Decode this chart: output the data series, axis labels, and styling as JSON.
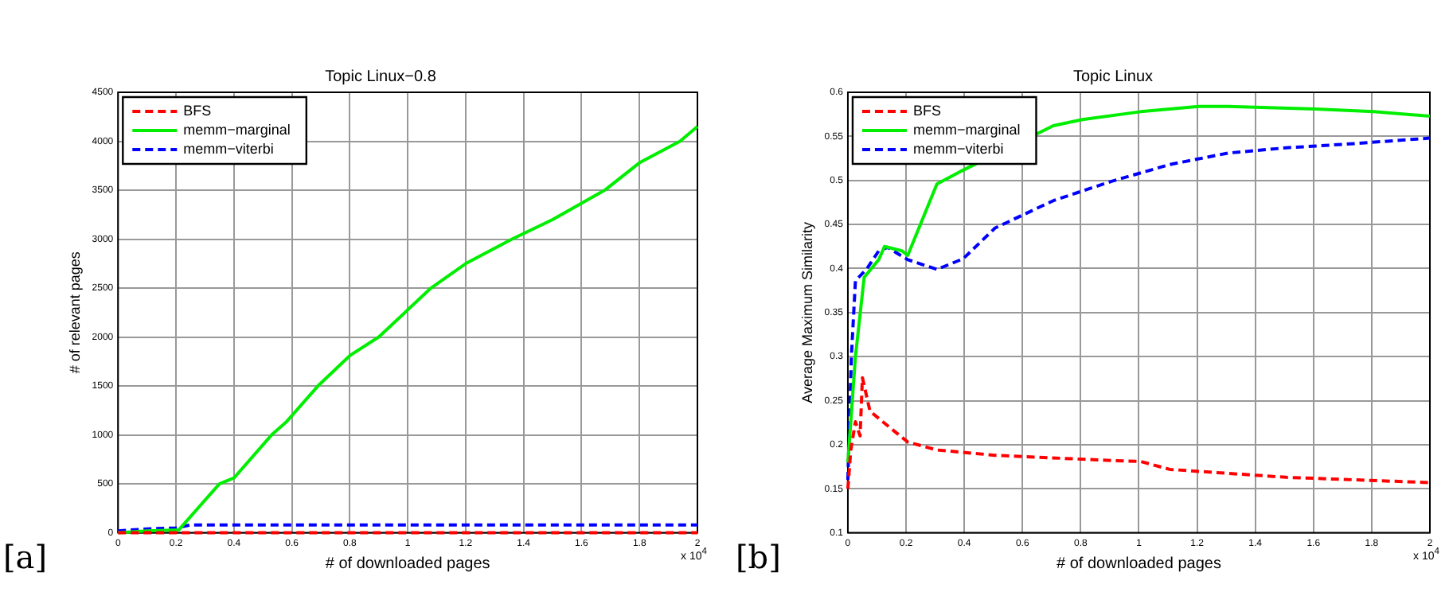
{
  "chart_data": [
    {
      "type": "line",
      "title": "Topic Linux−0.8",
      "xlabel": "# of downloaded pages",
      "ylabel": "# of relevant pages",
      "xlim": [
        0,
        2
      ],
      "xticks": [
        0,
        0.2,
        0.4,
        0.6,
        0.8,
        1,
        1.2,
        1.4,
        1.6,
        1.8,
        2
      ],
      "ylim": [
        0,
        4500
      ],
      "yticks": [
        0,
        500,
        1000,
        1500,
        2000,
        2500,
        3000,
        3500,
        4000,
        4500
      ],
      "grid": true,
      "legend": "top left",
      "annotations": [
        "[a]",
        "x 10$^{4}$"
      ],
      "series": [
        {
          "name": "BFS",
          "color": "#ff0000",
          "line_style": "dashed",
          "x": [
            0,
            0.2,
            0.5,
            1,
            1.5,
            2
          ],
          "values": [
            0,
            0,
            0,
            0,
            0,
            0
          ]
        },
        {
          "name": "memm−marginal",
          "color": "#00ee00",
          "line_style": "solid",
          "x": [
            0,
            0.1,
            0.21,
            0.32,
            0.35,
            0.4,
            0.53,
            0.58,
            0.69,
            0.8,
            0.9,
            1.08,
            1.2,
            1.36,
            1.5,
            1.68,
            1.8,
            1.94,
            2
          ],
          "values": [
            0,
            20,
            30,
            400,
            500,
            560,
            1000,
            1130,
            1500,
            1810,
            2000,
            2500,
            2750,
            3000,
            3200,
            3500,
            3780,
            4000,
            4150
          ]
        },
        {
          "name": "memm−viterbi",
          "color": "#0000ff",
          "line_style": "dashed",
          "x": [
            0,
            0.1,
            0.2,
            0.25,
            0.5,
            1,
            1.5,
            2
          ],
          "values": [
            20,
            40,
            50,
            80,
            80,
            80,
            80,
            80
          ]
        }
      ]
    },
    {
      "type": "line",
      "title": "Topic Linux",
      "xlabel": "# of downloaded pages",
      "ylabel": "Average Maximum Similarity",
      "xlim": [
        0,
        2
      ],
      "xticks": [
        0,
        0.2,
        0.4,
        0.6,
        0.8,
        1,
        1.2,
        1.4,
        1.6,
        1.8,
        2
      ],
      "ylim": [
        0.1,
        0.6
      ],
      "yticks": [
        0.1,
        0.15,
        0.2,
        0.25,
        0.3,
        0.35,
        0.4,
        0.45,
        0.5,
        0.55,
        0.6
      ],
      "grid": true,
      "legend": "top left",
      "annotations": [
        "[b]",
        "x 10$^{4}$"
      ],
      "series": [
        {
          "name": "BFS",
          "color": "#ff0000",
          "line_style": "dashed",
          "x": [
            0,
            0.01,
            0.026,
            0.042,
            0.05,
            0.076,
            0.146,
            0.206,
            0.306,
            0.506,
            0.906,
            1.006,
            1.106,
            1.506,
            2
          ],
          "values": [
            0.15,
            0.194,
            0.226,
            0.21,
            0.276,
            0.238,
            0.219,
            0.203,
            0.194,
            0.188,
            0.182,
            0.181,
            0.172,
            0.163,
            0.157
          ]
        },
        {
          "name": "memm−marginal",
          "color": "#00ee00",
          "line_style": "solid",
          "x": [
            0,
            0.026,
            0.056,
            0.106,
            0.126,
            0.186,
            0.206,
            0.306,
            0.386,
            0.706,
            0.806,
            1.006,
            1.206,
            1.306,
            1.606,
            1.806,
            2
          ],
          "values": [
            0.18,
            0.3,
            0.39,
            0.41,
            0.425,
            0.42,
            0.415,
            0.496,
            0.51,
            0.562,
            0.569,
            0.578,
            0.584,
            0.584,
            0.581,
            0.578,
            0.573
          ]
        },
        {
          "name": "memm−viterbi",
          "color": "#0000ff",
          "line_style": "dashed",
          "x": [
            0,
            0.012,
            0.026,
            0.066,
            0.106,
            0.136,
            0.206,
            0.306,
            0.396,
            0.506,
            0.706,
            0.906,
            1.106,
            1.306,
            1.506,
            1.706,
            2
          ],
          "values": [
            0.16,
            0.3,
            0.386,
            0.4,
            0.42,
            0.424,
            0.41,
            0.399,
            0.411,
            0.446,
            0.477,
            0.499,
            0.518,
            0.531,
            0.537,
            0.541,
            0.548
          ]
        }
      ]
    }
  ]
}
